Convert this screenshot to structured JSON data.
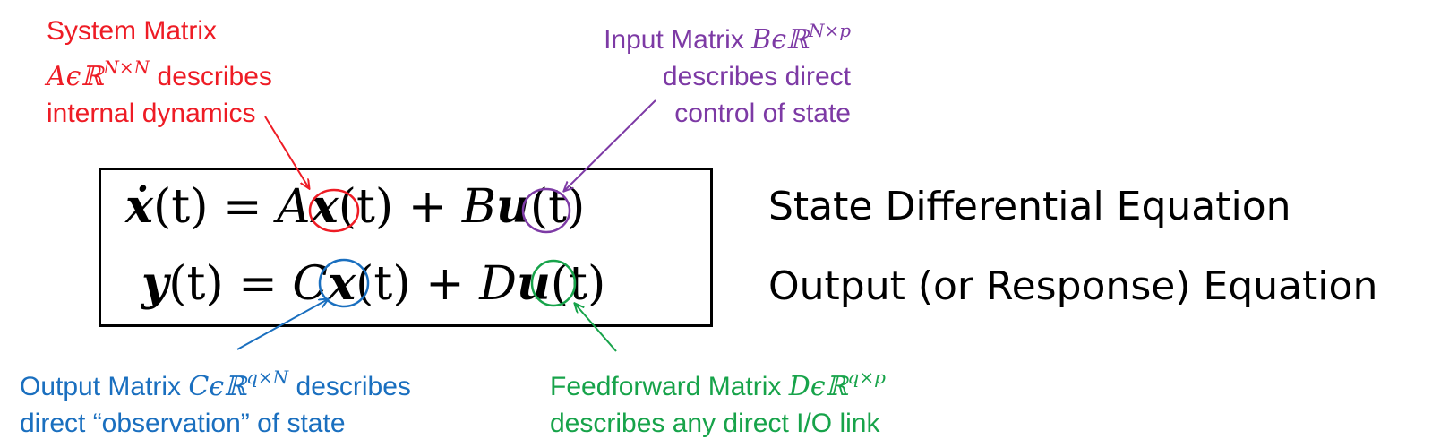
{
  "annotations": {
    "system": {
      "line1": "System Matrix",
      "sym": "A",
      "in": "ϵℝ",
      "sup": "N×N",
      "tail": " describes",
      "line3": "internal dynamics"
    },
    "input": {
      "lead": "Input Matrix ",
      "sym": "B",
      "in": "ϵℝ",
      "sup": "N×p",
      "line2": "describes direct",
      "line3": "control of state"
    },
    "output": {
      "lead": "Output Matrix ",
      "sym": "C",
      "in": "ϵℝ",
      "sup": "q×N",
      "tail": " describes",
      "line2": "direct “observation” of state"
    },
    "feedforward": {
      "lead": "Feedforward Matrix ",
      "sym": "D",
      "in": "ϵℝ",
      "sup": "q×p",
      "line2": "describes any direct I/O link"
    }
  },
  "equations": {
    "state": {
      "lhs": "ẋ",
      "t1": "(t) = ",
      "A": "A",
      "x": "x",
      "t2": "(t) + ",
      "B": "B",
      "u": "u",
      "t3": "(t)"
    },
    "output": {
      "lhs": "y",
      "t1": "(t) = ",
      "C": "C",
      "x": "x",
      "t2": "(t) + ",
      "D": "D",
      "u": "u",
      "t3": "(t)"
    }
  },
  "equation_names": {
    "state": "State Differential Equation",
    "output": "Output (or Response) Equation"
  },
  "colors": {
    "red": "#ee1c25",
    "purple": "#7d3aa5",
    "blue": "#1a6fbf",
    "green": "#17a34a"
  }
}
